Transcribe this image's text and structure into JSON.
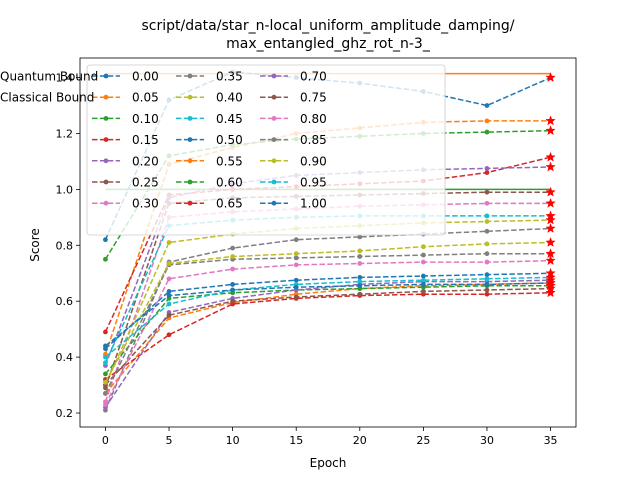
{
  "chart_data": {
    "type": "line",
    "title": "script/data/star_n-local_uniform_amplitude_damping/\nmax_entangled_ghz_rot_n-3_",
    "xlabel": "Epoch",
    "ylabel": "Score",
    "xlim": [
      -2,
      37
    ],
    "ylim": [
      0.15,
      1.47
    ],
    "xticks": [
      0,
      5,
      10,
      15,
      20,
      25,
      30,
      35
    ],
    "yticks": [
      0.2,
      0.4,
      0.6,
      0.8,
      1.0,
      1.2,
      1.4
    ],
    "ytick_labels": [
      "0.2",
      "0.4",
      "0.6",
      "0.8",
      "1.0",
      "1.2",
      "1.4"
    ],
    "x": [
      0,
      5,
      10,
      15,
      20,
      25,
      30,
      35
    ],
    "legend_position": "upper-left",
    "legend_columns": 3,
    "series": [
      {
        "name": "0.00",
        "color": "#1f77b4",
        "values": [
          0.82,
          1.32,
          1.42,
          1.4,
          1.38,
          1.35,
          1.3,
          1.4
        ]
      },
      {
        "name": "0.05",
        "color": "#ff7f0e",
        "values": [
          0.41,
          1.09,
          1.15,
          1.2,
          1.22,
          1.24,
          1.245,
          1.245
        ]
      },
      {
        "name": "0.10",
        "color": "#2ca02c",
        "values": [
          0.75,
          1.12,
          1.16,
          1.18,
          1.19,
          1.2,
          1.205,
          1.21
        ]
      },
      {
        "name": "0.15",
        "color": "#d62728",
        "values": [
          0.49,
          0.98,
          1.0,
          1.01,
          1.02,
          1.03,
          1.06,
          1.115
        ]
      },
      {
        "name": "0.20",
        "color": "#9467bd",
        "values": [
          0.37,
          0.97,
          1.02,
          1.05,
          1.06,
          1.07,
          1.075,
          1.08
        ]
      },
      {
        "name": "0.25",
        "color": "#8c564b",
        "values": [
          0.29,
          0.95,
          0.97,
          0.975,
          0.98,
          0.985,
          0.99,
          0.99
        ]
      },
      {
        "name": "0.30",
        "color": "#e377c2",
        "values": [
          0.24,
          0.9,
          0.92,
          0.93,
          0.94,
          0.945,
          0.95,
          0.95
        ]
      },
      {
        "name": "0.35",
        "color": "#7f7f7f",
        "values": [
          0.21,
          0.74,
          0.79,
          0.82,
          0.83,
          0.84,
          0.85,
          0.86
        ]
      },
      {
        "name": "0.40",
        "color": "#bcbd22",
        "values": [
          0.3,
          0.81,
          0.84,
          0.86,
          0.87,
          0.88,
          0.885,
          0.89
        ]
      },
      {
        "name": "0.45",
        "color": "#17becf",
        "values": [
          0.38,
          0.87,
          0.89,
          0.9,
          0.905,
          0.905,
          0.905,
          0.905
        ]
      },
      {
        "name": "0.50",
        "color": "#1f77b4",
        "values": [
          0.43,
          0.635,
          0.66,
          0.675,
          0.685,
          0.69,
          0.695,
          0.7
        ]
      },
      {
        "name": "0.55",
        "color": "#ff7f0e",
        "values": [
          0.27,
          0.54,
          0.595,
          0.625,
          0.645,
          0.655,
          0.66,
          0.665
        ]
      },
      {
        "name": "0.60",
        "color": "#2ca02c",
        "values": [
          0.34,
          0.61,
          0.63,
          0.64,
          0.645,
          0.65,
          0.655,
          0.655
        ]
      },
      {
        "name": "0.65",
        "color": "#d62728",
        "values": [
          0.32,
          0.48,
          0.59,
          0.61,
          0.62,
          0.625,
          0.625,
          0.63
        ]
      },
      {
        "name": "0.70",
        "color": "#9467bd",
        "values": [
          0.22,
          0.56,
          0.61,
          0.64,
          0.66,
          0.67,
          0.67,
          0.675
        ]
      },
      {
        "name": "0.75",
        "color": "#8c564b",
        "values": [
          0.3,
          0.55,
          0.6,
          0.615,
          0.625,
          0.635,
          0.64,
          0.645
        ]
      },
      {
        "name": "0.80",
        "color": "#e377c2",
        "values": [
          0.23,
          0.68,
          0.715,
          0.73,
          0.735,
          0.74,
          0.74,
          0.745
        ]
      },
      {
        "name": "0.85",
        "color": "#7f7f7f",
        "values": [
          0.27,
          0.73,
          0.75,
          0.755,
          0.76,
          0.765,
          0.77,
          0.77
        ]
      },
      {
        "name": "0.90",
        "color": "#bcbd22",
        "values": [
          0.31,
          0.735,
          0.76,
          0.77,
          0.78,
          0.795,
          0.805,
          0.81
        ]
      },
      {
        "name": "0.95",
        "color": "#17becf",
        "values": [
          0.4,
          0.59,
          0.64,
          0.66,
          0.67,
          0.675,
          0.68,
          0.685
        ]
      },
      {
        "name": "1.00",
        "color": "#1f77b4",
        "values": [
          0.44,
          0.62,
          0.64,
          0.65,
          0.655,
          0.66,
          0.66,
          0.665
        ]
      }
    ],
    "bounds": [
      {
        "name": "Quantum Bound",
        "color": "#ff7f0e",
        "value": 1.4142
      },
      {
        "name": "Classical Bound",
        "color": "#2ca02c",
        "value": 1.0
      }
    ]
  }
}
